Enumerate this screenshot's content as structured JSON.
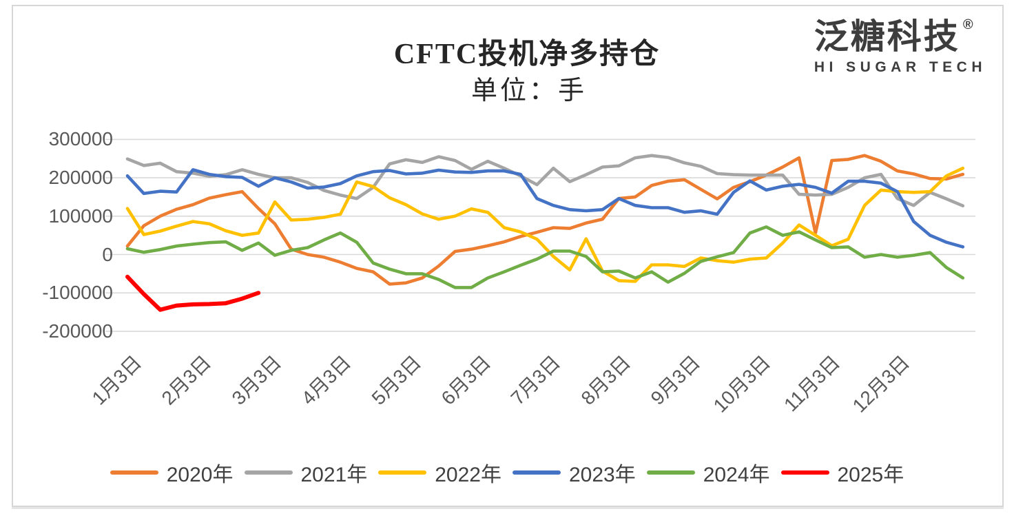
{
  "header": {
    "title": "CFTC投机净多持仓",
    "subtitle": "单位：手",
    "logo_text": "泛糖科技",
    "logo_reg": "®",
    "logo_subtext": "HI SUGAR TECH"
  },
  "chart_data": {
    "type": "line",
    "title": "CFTC投机净多持仓",
    "unit_label": "单位：手",
    "x_axis": "weekly dates, Jan-Dec",
    "x_labels": [
      "1月3日",
      "2月3日",
      "3月3日",
      "4月3日",
      "5月3日",
      "6月3日",
      "7月3日",
      "8月3日",
      "9月3日",
      "10月3日",
      "11月3日",
      "12月3日"
    ],
    "y_ticks": [
      300000,
      200000,
      100000,
      0,
      -100000,
      -200000
    ],
    "ylim": [
      -250000,
      330000
    ],
    "grid": "horizontal",
    "legend_position": "bottom",
    "series": [
      {
        "name": "2020年",
        "color": "#ED7D31",
        "values": [
          22000,
          75000,
          100000,
          118000,
          130000,
          147000,
          156000,
          164000,
          120000,
          80000,
          14000,
          0,
          -7000,
          -20000,
          -36000,
          -45000,
          -77000,
          -74000,
          -61000,
          -30000,
          8000,
          14000,
          23000,
          33000,
          47000,
          58000,
          70000,
          68000,
          82000,
          92000,
          146000,
          150000,
          180000,
          191000,
          195000,
          170000,
          145000,
          175000,
          190000,
          207000,
          228000,
          252000,
          56000,
          245000,
          248000,
          258000,
          243000,
          218000,
          210000,
          198000,
          197000,
          209000
        ]
      },
      {
        "name": "2021年",
        "color": "#A5A5A5",
        "values": [
          249000,
          232000,
          238000,
          216000,
          212000,
          204000,
          208000,
          221000,
          209000,
          200000,
          200000,
          188000,
          167000,
          155000,
          146000,
          175000,
          236000,
          247000,
          240000,
          255000,
          245000,
          222000,
          243000,
          225000,
          205000,
          182000,
          225000,
          190000,
          208000,
          228000,
          231000,
          252000,
          258000,
          253000,
          239000,
          230000,
          211000,
          208000,
          207000,
          207000,
          207000,
          157000,
          155000,
          157000,
          175000,
          200000,
          209000,
          146000,
          128000,
          162000,
          145000,
          127000
        ]
      },
      {
        "name": "2022年",
        "color": "#FFC000",
        "values": [
          120000,
          52000,
          61000,
          74000,
          86000,
          80000,
          62000,
          50000,
          56000,
          137000,
          90000,
          92000,
          97000,
          105000,
          189000,
          177000,
          148000,
          130000,
          106000,
          92000,
          100000,
          119000,
          110000,
          70000,
          59000,
          40000,
          -5000,
          -40000,
          41000,
          -43000,
          -68000,
          -70000,
          -27000,
          -27000,
          -31000,
          -9000,
          -16000,
          -20000,
          -12000,
          -9000,
          30000,
          77000,
          50000,
          23000,
          40000,
          128000,
          168000,
          164000,
          162000,
          164000,
          205000,
          225000
        ]
      },
      {
        "name": "2023年",
        "color": "#4472C4",
        "values": [
          205000,
          159000,
          165000,
          163000,
          221000,
          209000,
          203000,
          201000,
          178000,
          200000,
          189000,
          173000,
          176000,
          185000,
          205000,
          216000,
          219000,
          210000,
          212000,
          220000,
          215000,
          214000,
          218000,
          218000,
          209000,
          146000,
          128000,
          117000,
          114000,
          117000,
          146000,
          128000,
          122000,
          122000,
          110000,
          114000,
          105000,
          162000,
          192000,
          168000,
          178000,
          183000,
          175000,
          160000,
          191000,
          191000,
          186000,
          164000,
          86000,
          50000,
          32000,
          20000
        ]
      },
      {
        "name": "2024年",
        "color": "#70AD47",
        "values": [
          15000,
          6000,
          13000,
          22000,
          27000,
          31000,
          33000,
          11000,
          30000,
          -2000,
          11000,
          18000,
          38000,
          56000,
          32000,
          -22000,
          -38000,
          -50000,
          -50000,
          -65000,
          -86000,
          -86000,
          -61000,
          -45000,
          -28000,
          -12000,
          9000,
          9000,
          -5000,
          -45000,
          -43000,
          -61000,
          -45000,
          -72000,
          -49000,
          -18000,
          -6000,
          5000,
          56000,
          72000,
          50000,
          59000,
          38000,
          18000,
          20000,
          -7000,
          0,
          -7000,
          -2000,
          5000,
          -34000,
          -61000
        ]
      },
      {
        "name": "2025年",
        "color": "#FF0000",
        "values": [
          -58000,
          -103000,
          -144000,
          -133000,
          -130000,
          -129000,
          -127000,
          -115000,
          -100000
        ]
      }
    ]
  }
}
